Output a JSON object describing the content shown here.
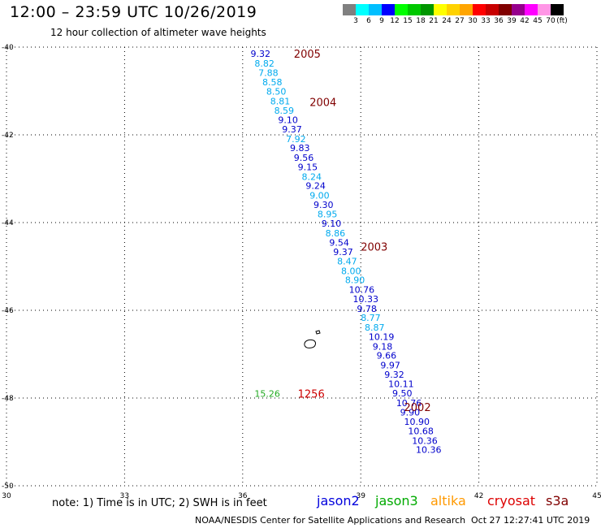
{
  "header": {
    "title": "12:00 – 23:59 UTC 10/26/2019",
    "subtitle": "12 hour collection of altimeter wave heights"
  },
  "colorbar": {
    "colors": [
      "#808080",
      "#00ffff",
      "#00bfff",
      "#0000ff",
      "#00ff00",
      "#00c800",
      "#009600",
      "#ffff00",
      "#ffd200",
      "#ffa500",
      "#ff0000",
      "#c80000",
      "#800000",
      "#96008c",
      "#ff00ff",
      "#ff96e6",
      "#000000"
    ],
    "labels": [
      "3",
      "6",
      "9",
      "12",
      "15",
      "18",
      "21",
      "24",
      "27",
      "30",
      "33",
      "36",
      "39",
      "42",
      "45",
      "70"
    ],
    "unit": "(ft)"
  },
  "map": {
    "lon_range": [
      30,
      45
    ],
    "lat_range": [
      -50,
      -40
    ],
    "x_ticks": [
      "30",
      "33",
      "36",
      "39",
      "42",
      "45"
    ],
    "y_ticks": [
      "-40",
      "-42",
      "-44",
      "-46",
      "-48",
      "-50"
    ]
  },
  "wave_labels": [
    {
      "text": "9.32",
      "lat": -40.15,
      "lon": 36.2,
      "color": "#0000cc"
    },
    {
      "text": "8.82",
      "lat": -40.37,
      "lon": 36.3,
      "color": "#00aaee"
    },
    {
      "text": "7.88",
      "lat": -40.58,
      "lon": 36.4,
      "color": "#00aaee"
    },
    {
      "text": "8.58",
      "lat": -40.8,
      "lon": 36.5,
      "color": "#00aaee"
    },
    {
      "text": "8.50",
      "lat": -41.01,
      "lon": 36.6,
      "color": "#00aaee"
    },
    {
      "text": "8.81",
      "lat": -41.23,
      "lon": 36.7,
      "color": "#00aaee"
    },
    {
      "text": "8.59",
      "lat": -41.44,
      "lon": 36.8,
      "color": "#00aaee"
    },
    {
      "text": "9.10",
      "lat": -41.66,
      "lon": 36.9,
      "color": "#0000cc"
    },
    {
      "text": "9.37",
      "lat": -41.87,
      "lon": 37.0,
      "color": "#0000cc"
    },
    {
      "text": "7.92",
      "lat": -42.09,
      "lon": 37.1,
      "color": "#00aaee"
    },
    {
      "text": "9.83",
      "lat": -42.3,
      "lon": 37.2,
      "color": "#0000cc"
    },
    {
      "text": "9.56",
      "lat": -42.52,
      "lon": 37.3,
      "color": "#0000cc"
    },
    {
      "text": "9.15",
      "lat": -42.73,
      "lon": 37.4,
      "color": "#0000cc"
    },
    {
      "text": "8.24",
      "lat": -42.95,
      "lon": 37.5,
      "color": "#00aaee"
    },
    {
      "text": "9.24",
      "lat": -43.16,
      "lon": 37.6,
      "color": "#0000cc"
    },
    {
      "text": "9.00",
      "lat": -43.38,
      "lon": 37.7,
      "color": "#00aaee"
    },
    {
      "text": "9.30",
      "lat": -43.59,
      "lon": 37.8,
      "color": "#0000cc"
    },
    {
      "text": "8.95",
      "lat": -43.81,
      "lon": 37.9,
      "color": "#00aaee"
    },
    {
      "text": "9.10",
      "lat": -44.02,
      "lon": 38.0,
      "color": "#0000cc"
    },
    {
      "text": "8.86",
      "lat": -44.24,
      "lon": 38.1,
      "color": "#00aaee"
    },
    {
      "text": "9.54",
      "lat": -44.45,
      "lon": 38.2,
      "color": "#0000cc"
    },
    {
      "text": "9.37",
      "lat": -44.67,
      "lon": 38.3,
      "color": "#0000cc"
    },
    {
      "text": "8.47",
      "lat": -44.88,
      "lon": 38.4,
      "color": "#00aaee"
    },
    {
      "text": "8.00",
      "lat": -45.1,
      "lon": 38.5,
      "color": "#00aaee"
    },
    {
      "text": "8.90",
      "lat": -45.31,
      "lon": 38.6,
      "color": "#00aaee"
    },
    {
      "text": "10.76",
      "lat": -45.53,
      "lon": 38.7,
      "color": "#0000cc"
    },
    {
      "text": "10.33",
      "lat": -45.74,
      "lon": 38.8,
      "color": "#0000cc"
    },
    {
      "text": "9.78",
      "lat": -45.96,
      "lon": 38.9,
      "color": "#0000cc"
    },
    {
      "text": "8.77",
      "lat": -46.17,
      "lon": 39.0,
      "color": "#00aaee"
    },
    {
      "text": "8.87",
      "lat": -46.39,
      "lon": 39.1,
      "color": "#00aaee"
    },
    {
      "text": "10.19",
      "lat": -46.6,
      "lon": 39.2,
      "color": "#0000cc"
    },
    {
      "text": "9.18",
      "lat": -46.82,
      "lon": 39.3,
      "color": "#0000cc"
    },
    {
      "text": "9.66",
      "lat": -47.03,
      "lon": 39.4,
      "color": "#0000cc"
    },
    {
      "text": "9.97",
      "lat": -47.25,
      "lon": 39.5,
      "color": "#0000cc"
    },
    {
      "text": "9.32",
      "lat": -47.46,
      "lon": 39.6,
      "color": "#0000cc"
    },
    {
      "text": "10.11",
      "lat": -47.68,
      "lon": 39.7,
      "color": "#0000cc"
    },
    {
      "text": "9.50",
      "lat": -47.89,
      "lon": 39.8,
      "color": "#0000cc"
    },
    {
      "text": "10.76",
      "lat": -48.11,
      "lon": 39.9,
      "color": "#0000cc"
    },
    {
      "text": "9.90",
      "lat": -48.32,
      "lon": 40.0,
      "color": "#0000cc"
    },
    {
      "text": "10.90",
      "lat": -48.54,
      "lon": 40.1,
      "color": "#0000cc"
    },
    {
      "text": "10.68",
      "lat": -48.75,
      "lon": 40.2,
      "color": "#0000cc"
    },
    {
      "text": "10.36",
      "lat": -48.97,
      "lon": 40.3,
      "color": "#0000cc"
    },
    {
      "text": "10.36",
      "lat": -49.18,
      "lon": 40.4,
      "color": "#0000cc"
    },
    {
      "text": "15.26",
      "lat": -47.9,
      "lon": 36.3,
      "color": "#22aa22"
    }
  ],
  "time_labels": [
    {
      "text": "2005",
      "lat": -40.15,
      "lon": 37.3,
      "color": "#800000"
    },
    {
      "text": "2004",
      "lat": -41.25,
      "lon": 37.7,
      "color": "#800000"
    },
    {
      "text": "2003",
      "lat": -44.55,
      "lon": 39.0,
      "color": "#800000"
    },
    {
      "text": "1256",
      "lat": -47.9,
      "lon": 37.4,
      "color": "#cc0000"
    },
    {
      "text": "2002",
      "lat": -48.2,
      "lon": 40.1,
      "color": "#800000"
    }
  ],
  "footer": {
    "note": "note: 1) Time is in UTC; 2) SWH is in feet",
    "legend": [
      {
        "text": "jason2",
        "color": "#0000dd"
      },
      {
        "text": "jason3",
        "color": "#00aa00"
      },
      {
        "text": "altika",
        "color": "#ff9900"
      },
      {
        "text": "cryosat",
        "color": "#dd0000"
      },
      {
        "text": "s3a",
        "color": "#800000"
      }
    ],
    "credit": "NOAA/NESDIS Center for Satellite Applications and Research",
    "timestamp": "Oct 27 12:27:41 UTC 2019"
  }
}
